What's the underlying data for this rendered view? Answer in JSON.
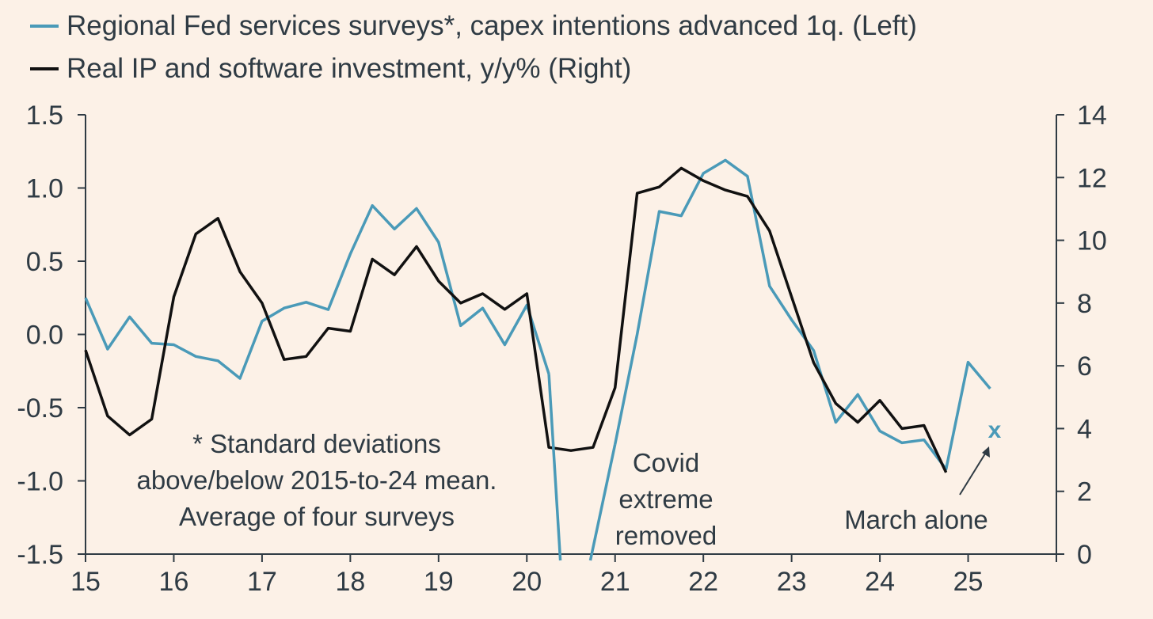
{
  "chart_data": {
    "type": "line",
    "legend": [
      {
        "label": "Regional Fed services surveys*, capex intentions advanced 1q. (Left)",
        "color": "#4a9ab8"
      },
      {
        "label": "Real IP and software investment, y/y% (Right)",
        "color": "#111111"
      }
    ],
    "left_axis": {
      "ylim": [
        -1.5,
        1.5
      ],
      "ticks": [
        "1.5",
        "1.0",
        "0.5",
        "0.0",
        "-0.5",
        "-1.0",
        "-1.5"
      ],
      "tick_values": [
        1.5,
        1.0,
        0.5,
        0.0,
        -0.5,
        -1.0,
        -1.5
      ]
    },
    "right_axis": {
      "ylim": [
        0,
        14
      ],
      "ticks": [
        "14",
        "12",
        "10",
        "8",
        "6",
        "4",
        "2",
        "0"
      ],
      "tick_values": [
        14,
        12,
        10,
        8,
        6,
        4,
        2,
        0
      ]
    },
    "x_axis": {
      "xlim": [
        15,
        26
      ],
      "ticks": [
        "15",
        "16",
        "17",
        "18",
        "19",
        "20",
        "21",
        "22",
        "23",
        "24",
        "25"
      ],
      "tick_values": [
        15,
        16,
        17,
        18,
        19,
        20,
        21,
        22,
        23,
        24,
        25
      ]
    },
    "series": [
      {
        "name": "Regional Fed services surveys*, capex intentions advanced 1q. (Left)",
        "axis": "left",
        "color": "#4a9ab8",
        "x": [
          15.0,
          15.25,
          15.5,
          15.75,
          16.0,
          16.25,
          16.5,
          16.75,
          17.0,
          17.25,
          17.5,
          17.75,
          18.0,
          18.25,
          18.5,
          18.75,
          19.0,
          19.25,
          19.5,
          19.75,
          20.0,
          20.25,
          20.5,
          20.75,
          21.0,
          21.25,
          21.5,
          21.75,
          22.0,
          22.25,
          22.5,
          22.75,
          23.0,
          23.25,
          23.5,
          23.75,
          24.0,
          24.25,
          24.5,
          24.75,
          25.0,
          25.25
        ],
        "y": [
          0.25,
          -0.1,
          0.12,
          -0.06,
          -0.07,
          -0.15,
          -0.18,
          -0.3,
          0.09,
          0.18,
          0.22,
          0.17,
          0.55,
          0.88,
          0.72,
          0.86,
          0.63,
          0.06,
          0.18,
          -0.07,
          0.2,
          -0.27,
          null,
          null,
          -0.75,
          0.0,
          0.84,
          0.81,
          1.1,
          1.19,
          1.08,
          0.33,
          0.1,
          -0.11,
          -0.6,
          -0.41,
          -0.66,
          -0.74,
          -0.72,
          -0.92,
          -0.19,
          -0.37
        ]
      },
      {
        "name": "Real IP and software investment, y/y% (Right)",
        "axis": "right",
        "color": "#111111",
        "x": [
          15.0,
          15.25,
          15.5,
          15.75,
          16.0,
          16.25,
          16.5,
          16.75,
          17.0,
          17.25,
          17.5,
          17.75,
          18.0,
          18.25,
          18.5,
          18.75,
          19.0,
          19.25,
          19.5,
          19.75,
          20.0,
          20.25,
          20.5,
          20.75,
          21.0,
          21.25,
          21.5,
          21.75,
          22.0,
          22.25,
          22.5,
          22.75,
          23.0,
          23.25,
          23.5,
          23.75,
          24.0,
          24.25,
          24.5,
          24.75
        ],
        "y": [
          6.5,
          4.4,
          3.8,
          4.3,
          8.2,
          10.2,
          10.7,
          9.0,
          8.0,
          6.2,
          6.3,
          7.2,
          7.1,
          9.4,
          8.9,
          9.8,
          8.7,
          8.0,
          8.3,
          7.8,
          8.3,
          3.4,
          3.3,
          3.4,
          5.3,
          11.5,
          11.7,
          12.3,
          11.9,
          11.6,
          11.4,
          10.3,
          8.2,
          6.1,
          4.8,
          4.2,
          4.9,
          4.0,
          4.1,
          2.6
        ]
      }
    ],
    "clipped_segments": [
      {
        "series": 0,
        "from_x": 20.25,
        "to_x": 20.38,
        "direction": "down"
      },
      {
        "series": 0,
        "from_x": 20.72,
        "to_x": 21.0,
        "direction": "up"
      }
    ],
    "marker": {
      "label": "x",
      "x": 25.3,
      "y_left": -0.65,
      "color": "#4a9ab8"
    },
    "annotations": {
      "footnote": [
        "* Standard deviations",
        "above/below 2015-to-24 mean.",
        "Average of four surveys"
      ],
      "covid": [
        "Covid",
        "extreme",
        "removed"
      ],
      "march": "March alone"
    }
  }
}
